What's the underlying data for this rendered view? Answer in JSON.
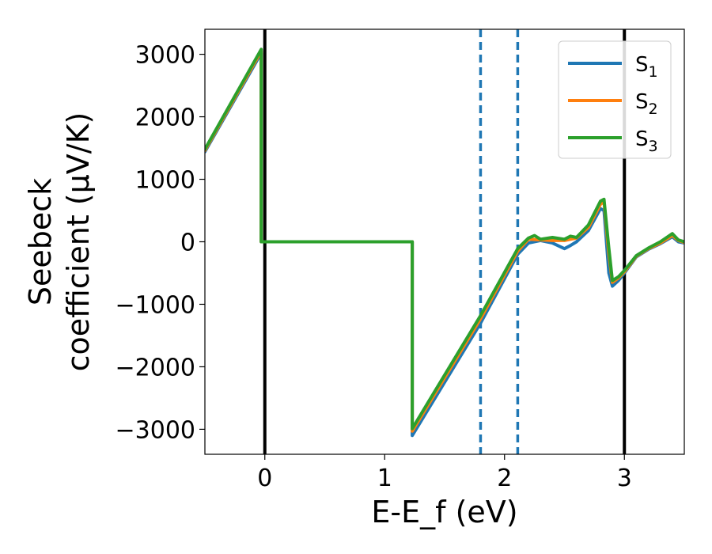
{
  "chart_data": {
    "type": "line",
    "xlabel": "E-E_f (eV)",
    "ylabel_line1": "Seebeck",
    "ylabel_line2": "coefficient  (μV/K)",
    "xlim": [
      -0.5,
      3.5
    ],
    "ylim": [
      -3400,
      3400
    ],
    "xticks": [
      0,
      1,
      2,
      3
    ],
    "yticks": [
      -3000,
      -2000,
      -1000,
      0,
      1000,
      2000,
      3000
    ],
    "grid": false,
    "legend_position": "upper right",
    "vertical_lines": [
      {
        "x": 0,
        "style": "solid",
        "color": "#000000"
      },
      {
        "x": 3,
        "style": "solid",
        "color": "#000000"
      },
      {
        "x": 1.8,
        "style": "dashed",
        "color": "#1f77b4"
      },
      {
        "x": 2.11,
        "style": "dashed",
        "color": "#1f77b4"
      }
    ],
    "series": [
      {
        "name": "S1",
        "label_main": "S",
        "label_sub": "1",
        "color": "#1f77b4",
        "points": [
          [
            -0.5,
            1440
          ],
          [
            -0.03,
            3020
          ],
          [
            -0.03,
            0
          ],
          [
            1.23,
            0
          ],
          [
            1.23,
            -3100
          ],
          [
            1.8,
            -1300
          ],
          [
            2.11,
            -200
          ],
          [
            2.2,
            -20
          ],
          [
            2.3,
            20
          ],
          [
            2.4,
            -20
          ],
          [
            2.5,
            -110
          ],
          [
            2.55,
            -60
          ],
          [
            2.6,
            0
          ],
          [
            2.7,
            180
          ],
          [
            2.8,
            530
          ],
          [
            2.83,
            500
          ],
          [
            2.87,
            -500
          ],
          [
            2.9,
            -710
          ],
          [
            2.95,
            -620
          ],
          [
            3.0,
            -500
          ],
          [
            3.1,
            -240
          ],
          [
            3.2,
            -120
          ],
          [
            3.3,
            -30
          ],
          [
            3.4,
            80
          ],
          [
            3.45,
            0
          ],
          [
            3.5,
            -20
          ]
        ]
      },
      {
        "name": "S2",
        "label_main": "S",
        "label_sub": "2",
        "color": "#ff7f0e",
        "points": [
          [
            -0.5,
            1460
          ],
          [
            -0.03,
            3050
          ],
          [
            -0.03,
            0
          ],
          [
            1.23,
            0
          ],
          [
            1.23,
            -3030
          ],
          [
            1.8,
            -1230
          ],
          [
            2.11,
            -150
          ],
          [
            2.2,
            40
          ],
          [
            2.3,
            30
          ],
          [
            2.4,
            20
          ],
          [
            2.5,
            20
          ],
          [
            2.55,
            40
          ],
          [
            2.6,
            60
          ],
          [
            2.7,
            230
          ],
          [
            2.8,
            600
          ],
          [
            2.83,
            640
          ],
          [
            2.87,
            -200
          ],
          [
            2.9,
            -650
          ],
          [
            2.95,
            -580
          ],
          [
            3.0,
            -480
          ],
          [
            3.1,
            -230
          ],
          [
            3.2,
            -110
          ],
          [
            3.3,
            -20
          ],
          [
            3.4,
            100
          ],
          [
            3.45,
            20
          ],
          [
            3.5,
            -10
          ]
        ]
      },
      {
        "name": "S3",
        "label_main": "S",
        "label_sub": "3",
        "color": "#2ca02c",
        "points": [
          [
            -0.5,
            1480
          ],
          [
            -0.03,
            3080
          ],
          [
            -0.03,
            0
          ],
          [
            1.23,
            0
          ],
          [
            1.23,
            -2990
          ],
          [
            1.8,
            -1180
          ],
          [
            2.11,
            -110
          ],
          [
            2.2,
            60
          ],
          [
            2.25,
            100
          ],
          [
            2.3,
            40
          ],
          [
            2.4,
            70
          ],
          [
            2.5,
            40
          ],
          [
            2.55,
            90
          ],
          [
            2.6,
            70
          ],
          [
            2.7,
            270
          ],
          [
            2.8,
            650
          ],
          [
            2.83,
            680
          ],
          [
            2.87,
            -100
          ],
          [
            2.9,
            -620
          ],
          [
            2.95,
            -560
          ],
          [
            3.0,
            -460
          ],
          [
            3.1,
            -220
          ],
          [
            3.2,
            -100
          ],
          [
            3.3,
            0
          ],
          [
            3.4,
            130
          ],
          [
            3.45,
            30
          ],
          [
            3.5,
            0
          ]
        ]
      }
    ]
  }
}
